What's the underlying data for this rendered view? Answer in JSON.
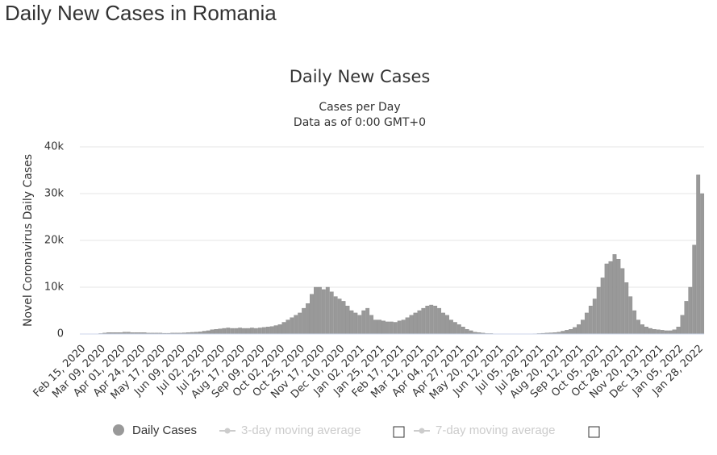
{
  "page_title": "Daily New Cases in Romania",
  "chart_data": {
    "type": "bar",
    "title": "Daily New Cases",
    "subtitle": [
      "Cases per Day",
      "Data as of 0:00 GMT+0"
    ],
    "y_label": "Novel Coronavirus Daily Cases",
    "color": "#999999",
    "grid": true,
    "ylim": [
      0,
      40000
    ],
    "yticks": [
      0,
      {
        "value": 10000,
        "label": "10k"
      },
      {
        "value": 20000,
        "label": "20k"
      },
      {
        "value": 30000,
        "label": "30k"
      },
      {
        "value": 40000,
        "label": "40k"
      }
    ],
    "categories": [
      "Feb 15, 2020",
      null,
      null,
      null,
      null,
      "Mar 09, 2020",
      null,
      null,
      null,
      null,
      "Apr 01, 2020",
      null,
      null,
      null,
      null,
      "Apr 24, 2020",
      null,
      null,
      null,
      null,
      "May 17, 2020",
      null,
      null,
      null,
      null,
      "Jun 09, 2020",
      null,
      null,
      null,
      null,
      "Jul 02, 2020",
      null,
      null,
      null,
      null,
      "Jul 25, 2020",
      null,
      null,
      null,
      null,
      "Aug 17, 2020",
      null,
      null,
      null,
      null,
      "Sep 09, 2020",
      null,
      null,
      null,
      null,
      "Oct 02, 2020",
      null,
      null,
      null,
      null,
      "Oct 25, 2020",
      null,
      null,
      null,
      null,
      "Nov 17, 2020",
      null,
      null,
      null,
      null,
      "Dec 10, 2020",
      null,
      null,
      null,
      null,
      "Jan 02, 2021",
      null,
      null,
      null,
      null,
      "Jan 25, 2021",
      null,
      null,
      null,
      null,
      "Feb 17, 2021",
      null,
      null,
      null,
      null,
      "Mar 12, 2021",
      null,
      null,
      null,
      null,
      "Apr 04, 2021",
      null,
      null,
      null,
      null,
      "Apr 27, 2021",
      null,
      null,
      null,
      null,
      "May 20, 2021",
      null,
      null,
      null,
      null,
      "Jun 12, 2021",
      null,
      null,
      null,
      null,
      "Jul 05, 2021",
      null,
      null,
      null,
      null,
      "Jul 28, 2021",
      null,
      null,
      null,
      null,
      "Aug 20, 2021",
      null,
      null,
      null,
      null,
      "Sep 12, 2021",
      null,
      null,
      null,
      null,
      "Oct 05, 2021",
      null,
      null,
      null,
      null,
      "Oct 28, 2021",
      null,
      null,
      null,
      null,
      "Nov 20, 2021",
      null,
      null,
      null,
      null,
      "Dec 13, 2021",
      null,
      null,
      null,
      null,
      "Jan 05, 2022",
      null,
      null,
      null,
      null,
      "Jan 28, 2022",
      null
    ],
    "values": [
      0,
      0,
      0,
      0,
      0,
      100,
      200,
      300,
      300,
      300,
      300,
      400,
      400,
      300,
      300,
      300,
      300,
      200,
      200,
      200,
      200,
      150,
      150,
      200,
      200,
      200,
      250,
      300,
      350,
      400,
      450,
      600,
      700,
      900,
      1000,
      1100,
      1200,
      1300,
      1200,
      1200,
      1300,
      1200,
      1200,
      1300,
      1200,
      1300,
      1400,
      1500,
      1600,
      1800,
      2000,
      2500,
      3000,
      3500,
      4000,
      4500,
      5500,
      6500,
      8500,
      10000,
      10000,
      9500,
      10000,
      9000,
      8000,
      7500,
      7000,
      6000,
      5000,
      4500,
      4000,
      5000,
      5500,
      4000,
      3000,
      3000,
      2800,
      2600,
      2600,
      2500,
      2800,
      3000,
      3500,
      4000,
      4500,
      5000,
      5500,
      6000,
      6200,
      6000,
      5500,
      4500,
      4000,
      3000,
      2500,
      2000,
      1500,
      1000,
      700,
      400,
      300,
      200,
      100,
      100,
      50,
      50,
      40,
      30,
      30,
      30,
      30,
      30,
      30,
      50,
      60,
      100,
      150,
      200,
      250,
      300,
      400,
      600,
      800,
      1000,
      1400,
      2000,
      3000,
      4500,
      6000,
      7500,
      10000,
      12000,
      15000,
      15500,
      17000,
      16000,
      14000,
      11000,
      8000,
      5000,
      3000,
      2000,
      1500,
      1200,
      1000,
      900,
      800,
      700,
      700,
      900,
      1500,
      4000,
      7000,
      10000,
      19000,
      34000,
      30000
    ]
  },
  "legend": [
    "Daily Cases",
    "3-day moving average",
    "7-day moving average"
  ]
}
